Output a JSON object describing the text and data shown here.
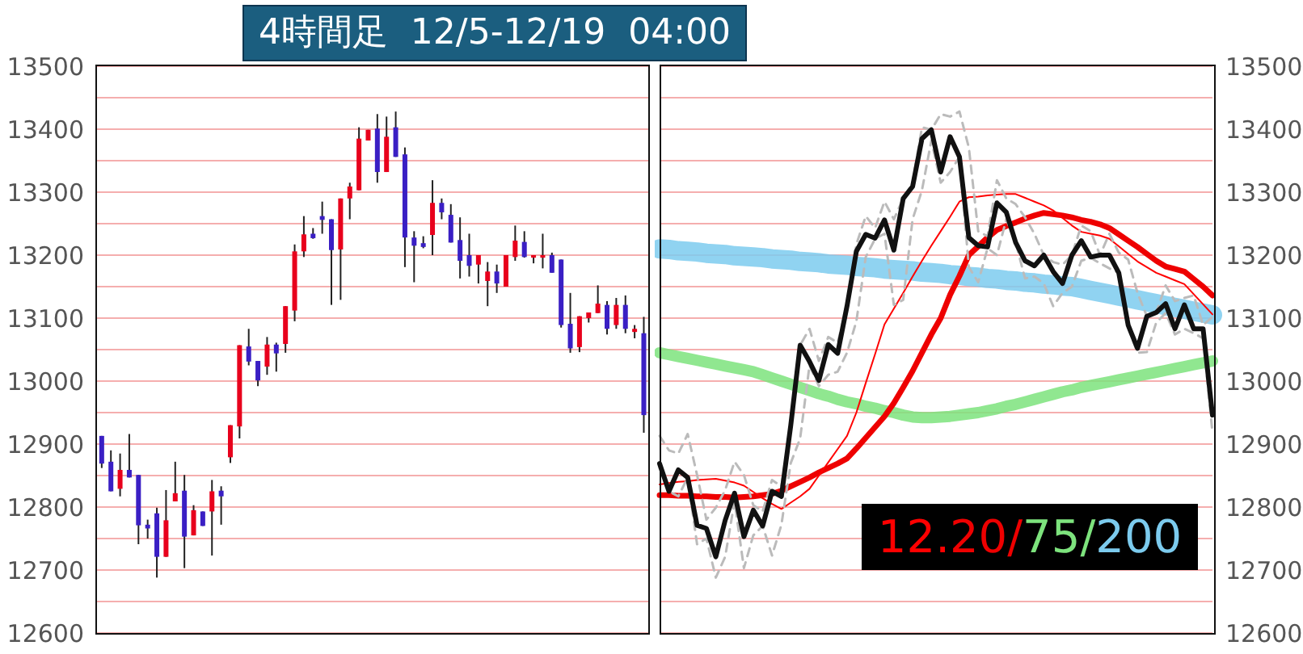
{
  "chart_data": [
    {
      "type": "candlestick",
      "title": "4時間足  12/5-12/19  04:00",
      "categories": [
        null,
        null,
        null,
        null,
        null,
        null,
        null,
        null,
        null,
        null,
        null,
        null,
        null,
        null,
        null,
        null,
        null,
        null,
        null,
        null,
        null,
        null,
        null,
        null,
        null,
        null,
        null,
        null,
        null,
        null,
        null,
        null,
        null,
        null,
        null,
        null,
        null,
        null,
        null,
        null,
        null,
        null,
        null,
        null,
        null,
        null,
        null,
        null,
        null,
        null,
        null,
        null,
        null,
        null,
        null,
        null,
        null,
        null,
        null,
        null
      ],
      "ohlc": [
        [
          12913,
          12913,
          12862,
          12869
        ],
        [
          12872,
          12890,
          12825,
          12825
        ],
        [
          12829,
          12885,
          12817,
          12859
        ],
        [
          12859,
          12916,
          12847,
          12847
        ],
        [
          12851,
          12851,
          12741,
          12771
        ],
        [
          12772,
          12780,
          12750,
          12766
        ],
        [
          12790,
          12799,
          12688,
          12721
        ],
        [
          12721,
          12827,
          12721,
          12779
        ],
        [
          12809,
          12872,
          12809,
          12822
        ],
        [
          12826,
          12851,
          12703,
          12753
        ],
        [
          12755,
          12803,
          12755,
          12795
        ],
        [
          12793,
          12793,
          12770,
          12770
        ],
        [
          12793,
          12843,
          12723,
          12825
        ],
        [
          12826,
          12833,
          12772,
          12817
        ],
        [
          12879,
          12930,
          12870,
          12930
        ],
        [
          12928,
          13057,
          12909,
          13057
        ],
        [
          13055,
          13083,
          13025,
          13031
        ],
        [
          13032,
          13032,
          12992,
          13001
        ],
        [
          13023,
          13070,
          13010,
          13058
        ],
        [
          13058,
          13061,
          13015,
          13044
        ],
        [
          13059,
          13119,
          13045,
          13119
        ],
        [
          13112,
          13217,
          13095,
          13206
        ],
        [
          13206,
          13262,
          13197,
          13233
        ],
        [
          13234,
          13243,
          13226,
          13227
        ],
        [
          13262,
          13285,
          13234,
          13256
        ],
        [
          13257,
          13257,
          13121,
          13208
        ],
        [
          13209,
          13290,
          13129,
          13290
        ],
        [
          13290,
          13315,
          13257,
          13309
        ],
        [
          13303,
          13403,
          13303,
          13385
        ],
        [
          13382,
          13399,
          13382,
          13399
        ],
        [
          13401,
          13424,
          13315,
          13332
        ],
        [
          13332,
          13420,
          13332,
          13388
        ],
        [
          13403,
          13428,
          13356,
          13356
        ],
        [
          13360,
          13371,
          13181,
          13228
        ],
        [
          13228,
          13238,
          13157,
          13215
        ],
        [
          13219,
          13230,
          13211,
          13213
        ],
        [
          13232,
          13319,
          13200,
          13283
        ],
        [
          13283,
          13290,
          13257,
          13268
        ],
        [
          13264,
          13281,
          13220,
          13220
        ],
        [
          13224,
          13260,
          13163,
          13191
        ],
        [
          13200,
          13234,
          13166,
          13183
        ],
        [
          13185,
          13200,
          13155,
          13200
        ],
        [
          13159,
          13189,
          13119,
          13174
        ],
        [
          13174,
          13185,
          13140,
          13155
        ],
        [
          13150,
          13200,
          13150,
          13200
        ],
        [
          13197,
          13247,
          13191,
          13223
        ],
        [
          13221,
          13238,
          13196,
          13197
        ],
        [
          13196,
          13200,
          13187,
          13200
        ],
        [
          13196,
          13234,
          13179,
          13200
        ],
        [
          13200,
          13204,
          13172,
          13172
        ],
        [
          13193,
          13193,
          13085,
          13089
        ],
        [
          13091,
          13140,
          13045,
          13052
        ],
        [
          13054,
          13103,
          13046,
          13103
        ],
        [
          13100,
          13109,
          13093,
          13109
        ],
        [
          13108,
          13152,
          13108,
          13123
        ],
        [
          13121,
          13127,
          13074,
          13083
        ],
        [
          13089,
          13132,
          13083,
          13121
        ],
        [
          13121,
          13136,
          13076,
          13083
        ],
        [
          13078,
          13089,
          13068,
          13083
        ],
        [
          13076,
          13102,
          12918,
          12946
        ]
      ],
      "ylim": [
        12600,
        13500
      ],
      "yticks": [
        12600,
        {
          "value": 12650,
          "label": null
        },
        12700,
        {
          "value": 12750,
          "label": null
        },
        12800,
        {
          "value": 12850,
          "label": null
        },
        12900,
        {
          "value": 12950,
          "label": null
        },
        13000,
        {
          "value": 13050,
          "label": null
        },
        13100,
        {
          "value": 13150,
          "label": null
        },
        13200,
        {
          "value": 13250,
          "label": null
        },
        13300,
        {
          "value": 13350,
          "label": null
        },
        13400,
        {
          "value": 13450,
          "label": null
        },
        13500
      ],
      "grid": "y",
      "tick_labels": "y"
    },
    {
      "type": "line",
      "categories": [
        null,
        null,
        null,
        null,
        null,
        null,
        null,
        null,
        null,
        null,
        null,
        null,
        null,
        null,
        null,
        null,
        null,
        null,
        null,
        null,
        null,
        null,
        null,
        null,
        null,
        null,
        null,
        null,
        null,
        null,
        null,
        null,
        null,
        null,
        null,
        null,
        null,
        null,
        null,
        null,
        null,
        null,
        null,
        null,
        null,
        null,
        null,
        null,
        null,
        null,
        null,
        null,
        null,
        null,
        null,
        null,
        null,
        null,
        null,
        null
      ],
      "series": [
        {
          "color": "#7ccbee",
          "values": [
            13210,
            13209,
            13207,
            13206,
            13205,
            13203,
            13202,
            13201,
            13199,
            13198,
            13197,
            13196,
            13194,
            13193,
            13192,
            13190,
            13189,
            13188,
            13186,
            13185,
            13184,
            13182,
            13181,
            13180,
            13178,
            13177,
            13176,
            13175,
            13173,
            13172,
            13171,
            13169,
            13168,
            13166,
            13165,
            13163,
            13162,
            13160,
            13159,
            13157,
            13156,
            13154,
            13153,
            13151,
            13150,
            13147,
            13144,
            13141,
            13138,
            13135,
            13132,
            13129,
            13126,
            13123,
            13120,
            13117,
            13114,
            13111,
            13108,
            13105
          ]
        },
        {
          "color": "#7de37d",
          "values": [
            13045,
            13042,
            13039,
            13036,
            13033,
            13030,
            13027,
            13024,
            13021,
            13018,
            13015,
            13010,
            13005,
            13000,
            12995,
            12990,
            12985,
            12980,
            12976,
            12971,
            12967,
            12964,
            12960,
            12957,
            12953,
            12950,
            12946,
            12943,
            12942,
            12942,
            12943,
            12944,
            12946,
            12948,
            12950,
            12953,
            12956,
            12960,
            12963,
            12967,
            12971,
            12975,
            12979,
            12983,
            12986,
            12990,
            12993,
            12996,
            12999,
            13002,
            13005,
            13008,
            13011,
            13014,
            13017,
            13020,
            13023,
            13026,
            13029,
            13032
          ]
        },
        {
          "color": "#ee0000",
          "values": [
            12819,
            12819,
            12818,
            12818,
            12817,
            12817,
            12816,
            12816,
            12815,
            12816,
            12817,
            12819,
            12821,
            12826,
            12833,
            12840,
            12847,
            12855,
            12862,
            12869,
            12877,
            12893,
            12910,
            12927,
            12944,
            12965,
            12990,
            13016,
            13045,
            13074,
            13100,
            13137,
            13167,
            13200,
            13214,
            13228,
            13240,
            13246,
            13252,
            13258,
            13263,
            13267,
            13265,
            13263,
            13260,
            13256,
            13253,
            13249,
            13243,
            13233,
            13223,
            13213,
            13202,
            13191,
            13182,
            13178,
            13174,
            13162,
            13150,
            13136
          ]
        },
        {
          "color": "#ff0000",
          "values": [
            12836,
            12838,
            12840,
            12841,
            12843,
            12844,
            12845,
            12842,
            12839,
            12834,
            12824,
            12814,
            12805,
            12797,
            12807,
            12817,
            12829,
            12850,
            12871,
            12892,
            12913,
            12950,
            12997,
            13043,
            13090,
            13115,
            13140,
            13166,
            13191,
            13215,
            13238,
            13261,
            13285,
            13292,
            13293,
            13295,
            13296,
            13297,
            13297,
            13291,
            13285,
            13279,
            13271,
            13259,
            13247,
            13237,
            13234,
            13231,
            13226,
            13214,
            13202,
            13190,
            13181,
            13172,
            13166,
            13160,
            13154,
            13138,
            13122,
            13106
          ]
        },
        {
          "color": "#bbbbbb",
          "line_style": "dashed",
          "values": [
            12913,
            12890,
            12885,
            12916,
            12851,
            12780,
            12799,
            12827,
            12872,
            12851,
            12803,
            12793,
            12843,
            12833,
            12930,
            13057,
            13083,
            13032,
            13070,
            13061,
            13119,
            13217,
            13262,
            13243,
            13285,
            13257,
            13290,
            13315,
            13403,
            13399,
            13424,
            13420,
            13428,
            13371,
            13238,
            13230,
            13319,
            13290,
            13281,
            13260,
            13234,
            13200,
            13189,
            13185,
            13200,
            13247,
            13238,
            13200,
            13234,
            13204,
            13193,
            13140,
            13103,
            13109,
            13152,
            13127,
            13132,
            13136,
            13089,
            13102
          ]
        },
        {
          "color": "#bbbbbb",
          "line_style": "dashed",
          "values": [
            12862,
            12825,
            12817,
            12847,
            12741,
            12750,
            12688,
            12721,
            12809,
            12703,
            12755,
            12770,
            12723,
            12772,
            12870,
            12909,
            13025,
            12992,
            13010,
            13015,
            13045,
            13095,
            13197,
            13226,
            13234,
            13121,
            13129,
            13257,
            13303,
            13382,
            13315,
            13332,
            13356,
            13181,
            13157,
            13211,
            13200,
            13257,
            13220,
            13163,
            13166,
            13155,
            13119,
            13140,
            13150,
            13191,
            13196,
            13187,
            13179,
            13172,
            13085,
            13045,
            13046,
            13093,
            13108,
            13074,
            13083,
            13076,
            13068,
            12918
          ]
        },
        {
          "color": "#111111",
          "line_style": "solid",
          "values": [
            12869,
            12825,
            12859,
            12847,
            12771,
            12766,
            12721,
            12779,
            12822,
            12753,
            12795,
            12770,
            12825,
            12817,
            12930,
            13057,
            13031,
            13001,
            13058,
            13044,
            13119,
            13206,
            13233,
            13227,
            13256,
            13208,
            13290,
            13309,
            13385,
            13399,
            13332,
            13388,
            13356,
            13228,
            13215,
            13213,
            13283,
            13268,
            13220,
            13191,
            13183,
            13200,
            13174,
            13155,
            13200,
            13223,
            13197,
            13200,
            13200,
            13172,
            13089,
            13052,
            13103,
            13109,
            13123,
            13083,
            13121,
            13083,
            13083,
            12946
          ]
        }
      ],
      "ylim": [
        12600,
        13500
      ],
      "yticks": [
        12600,
        {
          "value": 12650,
          "label": null
        },
        12700,
        {
          "value": 12750,
          "label": null
        },
        12800,
        {
          "value": 12850,
          "label": null
        },
        12900,
        {
          "value": 12950,
          "label": null
        },
        13000,
        {
          "value": 13050,
          "label": null
        },
        13100,
        {
          "value": 13150,
          "label": null
        },
        13200,
        {
          "value": 13250,
          "label": null
        },
        13300,
        {
          "value": 13350,
          "label": null
        },
        13400,
        {
          "value": 13450,
          "label": null
        },
        13500
      ],
      "grid": "y",
      "tick_labels": "y",
      "marker": "none",
      "annotations": [
        "12.20/75/200"
      ]
    }
  ]
}
